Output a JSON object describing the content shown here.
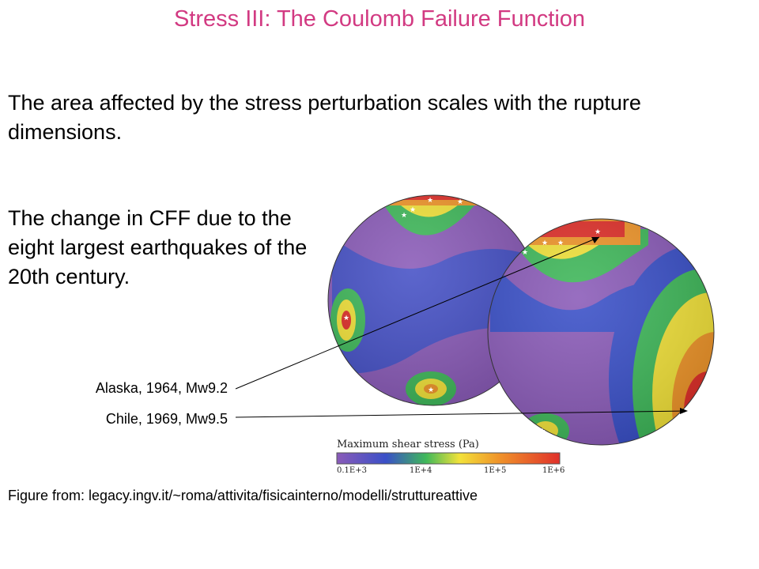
{
  "title": "Stress III: The Coulomb Failure Function",
  "paragraph1": "The area affected by the stress perturbation scales with the rupture dimensions.",
  "paragraph2": "The change in CFF due to the eight largest earthquakes of the 20th century.",
  "labels": {
    "alaska": "Alaska, 1964, Mw9.2",
    "chile": "Chile, 1969, Mw9.5"
  },
  "colorbar": {
    "title": "Maximum shear stress (Pa)",
    "ticks": [
      "0.1E+3",
      "1E+4",
      "1E+5",
      "1E+6"
    ]
  },
  "caption": "Figure from: legacy.ingv.it/~roma/attivita/fisicainterno/modelli/struttureattive",
  "colors": {
    "title": "#d23a82",
    "purple": "#8a5bb8",
    "blue": "#3a50c8",
    "green": "#3fb85a",
    "yellow": "#f2e23a",
    "orange": "#f0962a",
    "red": "#e0302a"
  }
}
